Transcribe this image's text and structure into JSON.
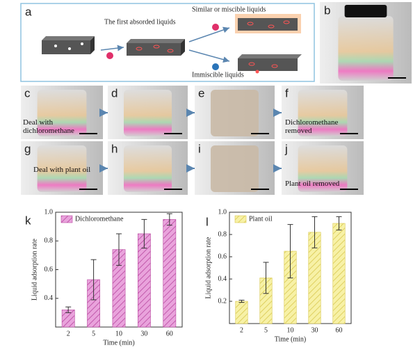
{
  "panel_labels": [
    "a",
    "b",
    "c",
    "d",
    "e",
    "f",
    "g",
    "h",
    "i",
    "j"
  ],
  "diagram": {
    "first": "The first absorded liquids",
    "similar": "Similar or miscible liquids",
    "immiscible": "Immiscible liquids"
  },
  "captions": {
    "c": "Deal with dichloromethane",
    "f": "Dichloromethane removed",
    "g": "Deal with plant oil",
    "j": "Plant oil removed"
  },
  "chart_data": [
    {
      "type": "bar",
      "panel_label": "k",
      "ylabel": "Liquid adsorption rate",
      "xlabel": "Time (min)",
      "categories": [
        "2",
        "5",
        "10",
        "30",
        "60"
      ],
      "series": [
        {
          "name": "Dichloromethane",
          "color": "#e9a3dc",
          "hatch": "#b8479f",
          "values": [
            0.32,
            0.53,
            0.74,
            0.85,
            0.95
          ],
          "errors": [
            0.02,
            0.14,
            0.11,
            0.1,
            0.04
          ]
        }
      ],
      "ylim": [
        0.2,
        1.0
      ],
      "yticks": [
        0.4,
        0.6,
        0.8,
        {
          "value": 1.0,
          "label": "1.0"
        }
      ],
      "legend": "upper left"
    },
    {
      "type": "bar",
      "panel_label": "l",
      "ylabel": "Liquid adsorption rate",
      "xlabel": "Time (min)",
      "categories": [
        "2",
        "5",
        "10",
        "30",
        "60"
      ],
      "series": [
        {
          "name": "Plant oil",
          "color": "#f7f1a6",
          "hatch": "#d9c84e",
          "values": [
            0.2,
            0.41,
            0.65,
            0.82,
            0.9
          ],
          "errors": [
            0.01,
            0.14,
            0.24,
            0.14,
            0.06
          ]
        }
      ],
      "ylim": [
        0.0,
        1.0
      ],
      "yticks": [
        0.2,
        0.4,
        0.6,
        0.8,
        {
          "value": 1.0,
          "label": "1.0"
        }
      ],
      "legend": "upper left"
    }
  ]
}
